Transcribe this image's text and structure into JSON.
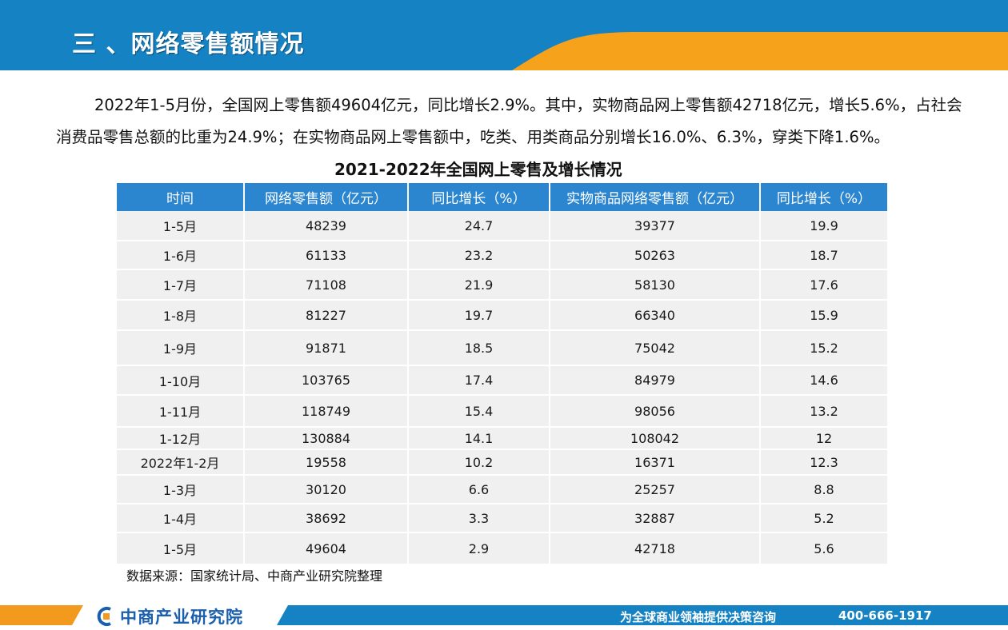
{
  "header": {
    "title": "三 、网络零售额情况",
    "colors": {
      "blue": "#1582c4",
      "orange": "#f7a21b"
    }
  },
  "intro": "2022年1-5月份，全国网上零售额49604亿元，同比增长2.9%。其中，实物商品网上零售额42718亿元，增长5.6%，占社会消费品零售总额的比重为24.9%；在实物商品网上零售额中，吃类、用类商品分别增长16.0%、6.3%，穿类下降1.6%。",
  "table": {
    "title": "2021-2022年全国网上零售及增长情况",
    "headers": [
      "时间",
      "网络零售额（亿元）",
      "同比增长（%）",
      "实物商品网络零售额（亿元）",
      "同比增长（%）"
    ],
    "rows": [
      [
        "1-5月",
        "48239",
        "24.7",
        "39377",
        "19.9"
      ],
      [
        "1-6月",
        "61133",
        "23.2",
        "50263",
        "18.7"
      ],
      [
        "1-7月",
        "71108",
        "21.9",
        "58130",
        "17.6"
      ],
      [
        "1-8月",
        "81227",
        "19.7",
        "66340",
        "15.9"
      ],
      [
        "1-9月",
        "91871",
        "18.5",
        "75042",
        "15.2"
      ],
      [
        "1-10月",
        "103765",
        "17.4",
        "84979",
        "14.6"
      ],
      [
        "1-11月",
        "118749",
        "15.4",
        "98056",
        "13.2"
      ],
      [
        "1-12月",
        "130884",
        "14.1",
        "108042",
        "12"
      ],
      [
        "2022年1-2月",
        "19558",
        "10.2",
        "16371",
        "12.3"
      ],
      [
        "1-3月",
        "30120",
        "6.6",
        "25257",
        "8.8"
      ],
      [
        "1-4月",
        "38692",
        "3.3",
        "32887",
        "5.2"
      ],
      [
        "1-5月",
        "49604",
        "2.9",
        "42718",
        "5.6"
      ]
    ]
  },
  "source": "数据来源：国家统计局、中商产业研究院整理",
  "footer": {
    "logo_text": "中商产业研究院",
    "slogan": "为全球商业领袖提供决策咨询",
    "phone": "400-666-1917"
  }
}
